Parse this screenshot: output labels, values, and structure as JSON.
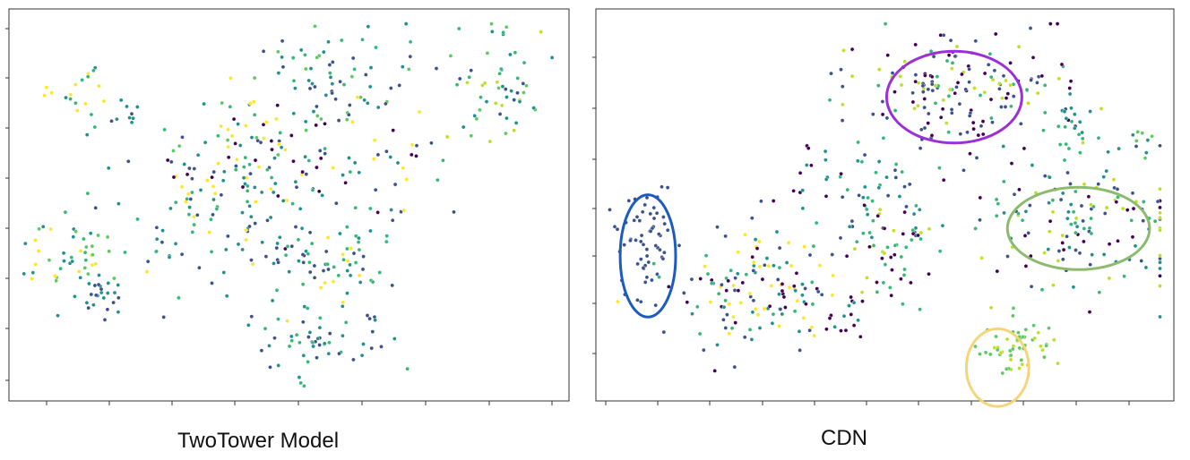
{
  "chart_data": [
    {
      "type": "scatter",
      "title": "TwoTower Model",
      "grid": false,
      "legend": "none",
      "palette": [
        "#440154",
        "#3b528b",
        "#21908c",
        "#35b779",
        "#5ec962",
        "#bddf26",
        "#fde725"
      ],
      "clusters": [
        {
          "cx": 0.6,
          "cy": 0.16,
          "sx": 0.07,
          "sy": 0.07,
          "n": 60,
          "colors": [
            2,
            3,
            2,
            1,
            4
          ]
        },
        {
          "cx": 0.12,
          "cy": 0.2,
          "sx": 0.03,
          "sy": 0.04,
          "n": 20,
          "colors": [
            2,
            3,
            6
          ]
        },
        {
          "cx": 0.2,
          "cy": 0.29,
          "sx": 0.015,
          "sy": 0.04,
          "n": 10,
          "colors": [
            1,
            2
          ]
        },
        {
          "cx": 0.47,
          "cy": 0.33,
          "sx": 0.11,
          "sy": 0.08,
          "n": 70,
          "colors": [
            2,
            3,
            1,
            6,
            4,
            0
          ]
        },
        {
          "cx": 0.88,
          "cy": 0.2,
          "sx": 0.045,
          "sy": 0.07,
          "n": 55,
          "colors": [
            2,
            3,
            1,
            5,
            4
          ]
        },
        {
          "cx": 0.49,
          "cy": 0.45,
          "sx": 0.11,
          "sy": 0.07,
          "n": 80,
          "colors": [
            1,
            2,
            6,
            0,
            3
          ]
        },
        {
          "cx": 0.36,
          "cy": 0.55,
          "sx": 0.09,
          "sy": 0.07,
          "n": 60,
          "colors": [
            1,
            2,
            3
          ]
        },
        {
          "cx": 0.56,
          "cy": 0.64,
          "sx": 0.08,
          "sy": 0.06,
          "n": 70,
          "colors": [
            1,
            2,
            3,
            6
          ]
        },
        {
          "cx": 0.1,
          "cy": 0.64,
          "sx": 0.05,
          "sy": 0.05,
          "n": 50,
          "colors": [
            2,
            3,
            4,
            6
          ]
        },
        {
          "cx": 0.16,
          "cy": 0.74,
          "sx": 0.02,
          "sy": 0.03,
          "n": 20,
          "colors": [
            1,
            2
          ]
        },
        {
          "cx": 0.56,
          "cy": 0.85,
          "sx": 0.05,
          "sy": 0.05,
          "n": 55,
          "colors": [
            2,
            1,
            3
          ]
        },
        {
          "cx": 0.7,
          "cy": 0.4,
          "sx": 0.04,
          "sy": 0.06,
          "n": 15,
          "colors": [
            6,
            2,
            1,
            0
          ]
        }
      ]
    },
    {
      "type": "scatter",
      "title": "CDN",
      "grid": false,
      "legend": "none",
      "palette": [
        "#440154",
        "#3b528b",
        "#21908c",
        "#35b779",
        "#5ec962",
        "#bddf26",
        "#fde725"
      ],
      "clusters": [
        {
          "cx": 0.63,
          "cy": 0.19,
          "sx": 0.1,
          "sy": 0.08,
          "n": 170,
          "colors": [
            0,
            1,
            0,
            1,
            5,
            3
          ]
        },
        {
          "cx": 0.85,
          "cy": 0.55,
          "sx": 0.11,
          "sy": 0.09,
          "n": 150,
          "colors": [
            2,
            1,
            3,
            0,
            5
          ]
        },
        {
          "cx": 0.08,
          "cy": 0.59,
          "sx": 0.03,
          "sy": 0.07,
          "n": 60,
          "colors": [
            1
          ]
        },
        {
          "cx": 0.73,
          "cy": 0.87,
          "sx": 0.03,
          "sy": 0.035,
          "n": 55,
          "colors": [
            5,
            4
          ]
        },
        {
          "cx": 0.27,
          "cy": 0.72,
          "sx": 0.08,
          "sy": 0.09,
          "n": 140,
          "colors": [
            0,
            2,
            1,
            3,
            6
          ]
        },
        {
          "cx": 0.5,
          "cy": 0.48,
          "sx": 0.04,
          "sy": 0.07,
          "n": 45,
          "colors": [
            3,
            2,
            1
          ]
        },
        {
          "cx": 0.51,
          "cy": 0.62,
          "sx": 0.04,
          "sy": 0.06,
          "n": 45,
          "colors": [
            0,
            5,
            3
          ]
        },
        {
          "cx": 0.37,
          "cy": 0.42,
          "sx": 0.02,
          "sy": 0.05,
          "n": 15,
          "colors": [
            0,
            2
          ]
        },
        {
          "cx": 0.43,
          "cy": 0.8,
          "sx": 0.02,
          "sy": 0.05,
          "n": 15,
          "colors": [
            0,
            2
          ]
        },
        {
          "cx": 0.83,
          "cy": 0.3,
          "sx": 0.02,
          "sy": 0.05,
          "n": 20,
          "colors": [
            3,
            2
          ]
        },
        {
          "cx": 0.96,
          "cy": 0.35,
          "sx": 0.02,
          "sy": 0.04,
          "n": 8,
          "colors": [
            2,
            4
          ]
        }
      ],
      "highlights": [
        {
          "cx": 0.62,
          "cy": 0.225,
          "rx": 0.195,
          "ry": 0.195,
          "color": "#9b30d9"
        },
        {
          "cx": 0.835,
          "cy": 0.56,
          "rx": 0.205,
          "ry": 0.175,
          "color": "#8cbb6e"
        },
        {
          "cx": 0.09,
          "cy": 0.63,
          "rx": 0.08,
          "ry": 0.26,
          "color": "#1c5bbf"
        },
        {
          "cx": 0.695,
          "cy": 0.915,
          "rx": 0.09,
          "ry": 0.165,
          "color": "#f5d57a"
        }
      ]
    }
  ]
}
